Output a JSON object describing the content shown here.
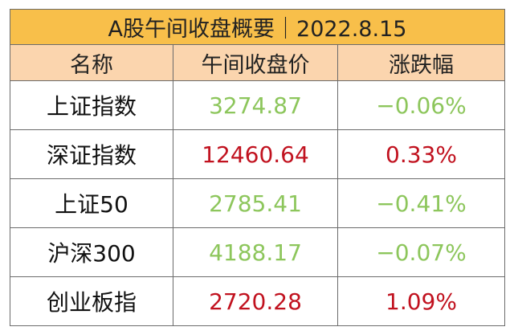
{
  "table": {
    "title": "A股午间收盘概要｜2022.8.15",
    "header": [
      "名称",
      "午间收盘价",
      "涨跌幅"
    ],
    "rows": [
      {
        "cells": [
          "上证指数",
          "3274.87",
          "−0.06%"
        ],
        "color": "#8dc65c"
      },
      {
        "cells": [
          "深证指数",
          "12460.64",
          "0.33%"
        ],
        "color": "#c1121f"
      },
      {
        "cells": [
          "上证50",
          "2785.41",
          "−0.41%"
        ],
        "color": "#8dc65c"
      },
      {
        "cells": [
          "沪深300",
          "4188.17",
          "−0.07%"
        ],
        "color": "#8dc65c"
      },
      {
        "cells": [
          "创业板指",
          "2720.28",
          "1.09%"
        ],
        "color": "#c1121f"
      }
    ]
  }
}
